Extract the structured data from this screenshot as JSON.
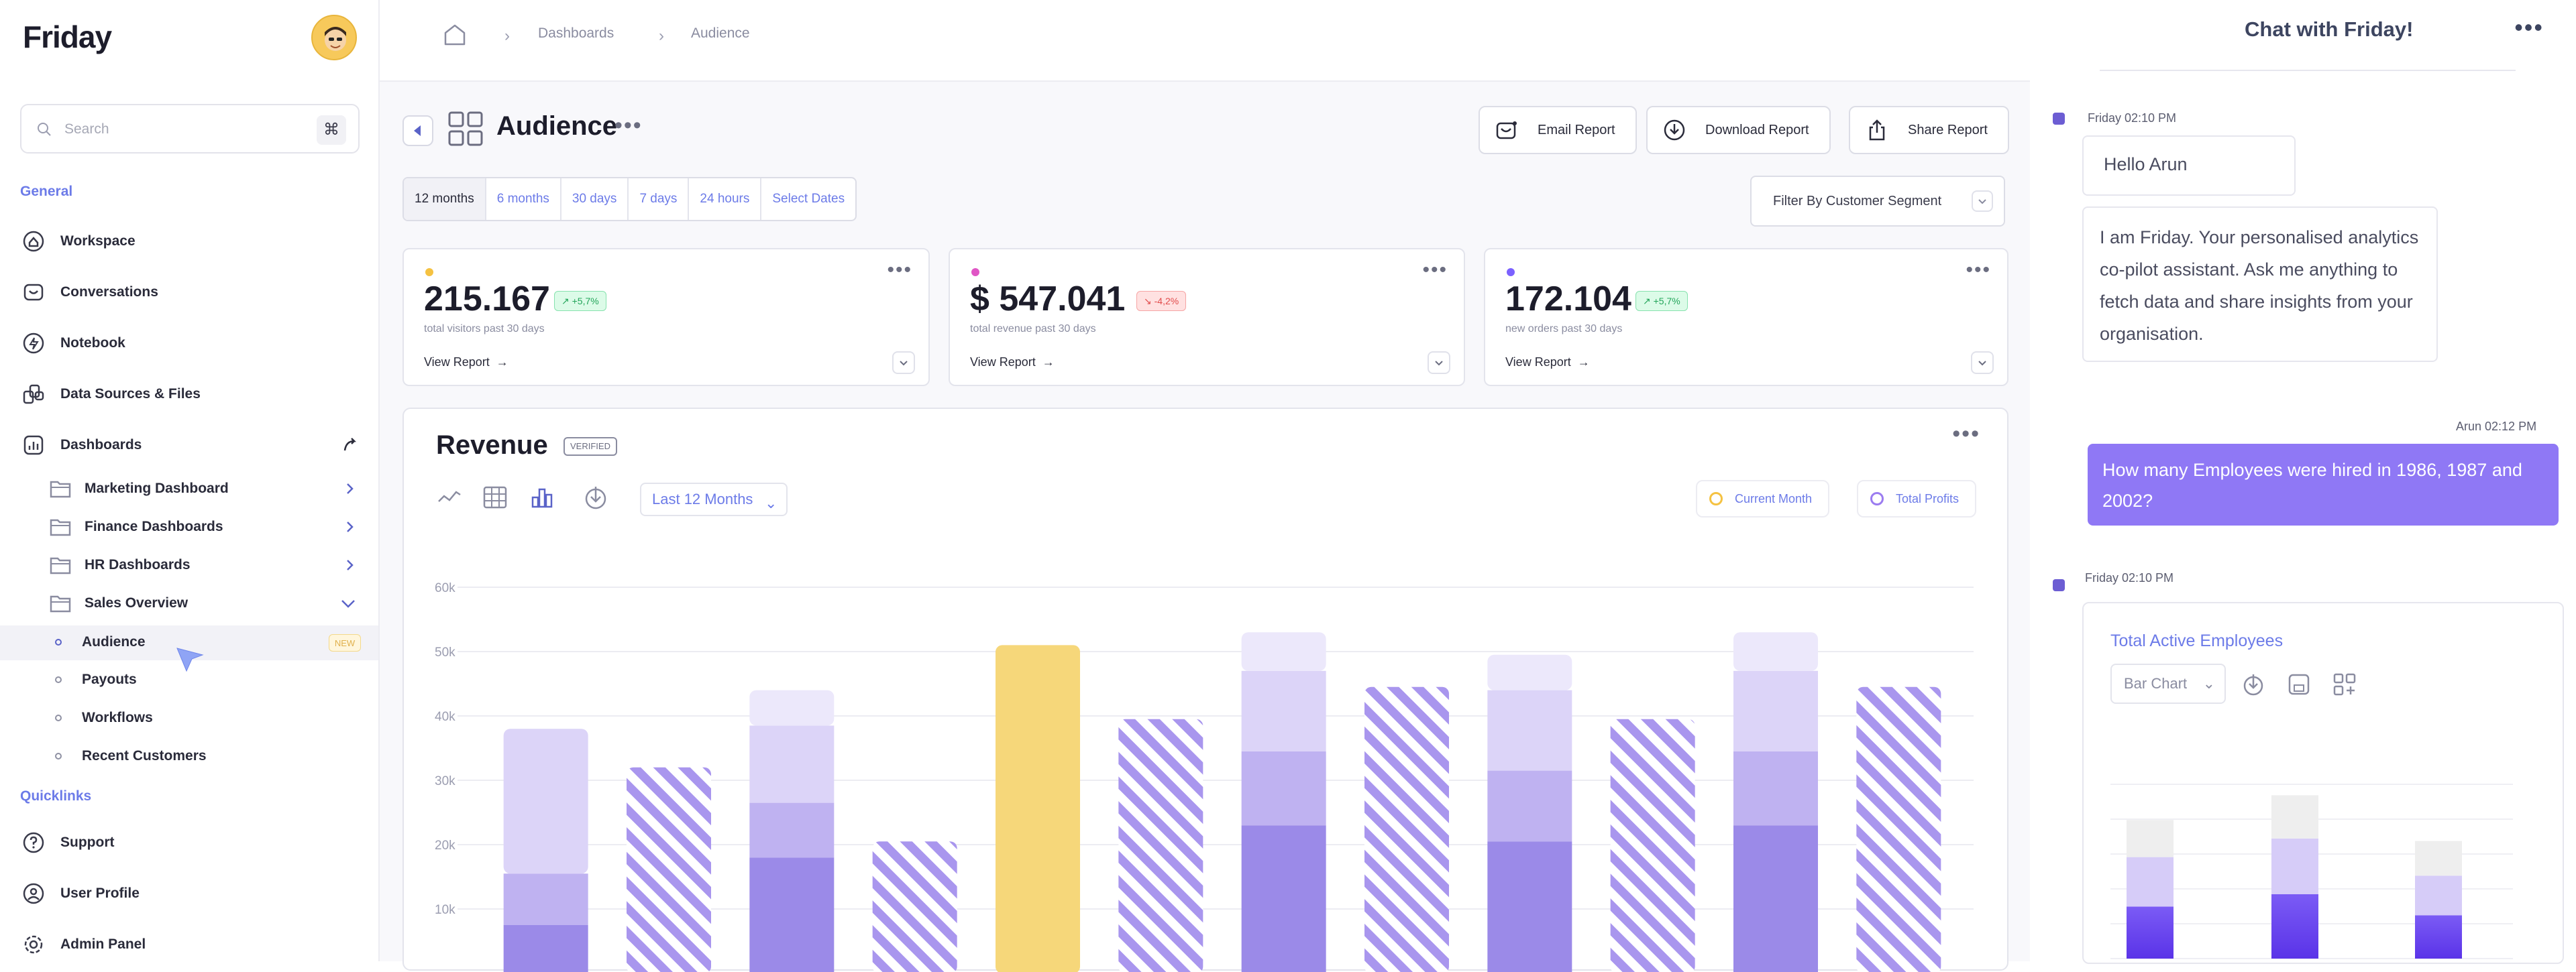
{
  "sidebar": {
    "logo": "Friday",
    "search": {
      "placeholder": "Search",
      "shortcut": "⌘"
    },
    "sections": {
      "general": "General",
      "quicklinks": "Quicklinks"
    },
    "nav": {
      "workspace": "Workspace",
      "conversations": "Conversations",
      "notebook": "Notebook",
      "data_sources": "Data Sources & Files",
      "dashboards": "Dashboards"
    },
    "dashboards": {
      "marketing": "Marketing Dashboard",
      "finance": "Finance Dashboards",
      "hr": "HR Dashboards",
      "sales": "Sales Overview"
    },
    "sales_items": {
      "audience": "Audience",
      "audience_badge": "NEW",
      "payouts": "Payouts",
      "workflows": "Workflows",
      "recent_customers": "Recent Customers"
    },
    "quicklinks": {
      "support": "Support",
      "user_profile": "User Profile",
      "admin_panel": "Admin Panel"
    }
  },
  "breadcrumb": {
    "dashboards": "Dashboards",
    "audience": "Audience"
  },
  "page": {
    "title": "Audience",
    "buttons": {
      "email": "Email Report",
      "download": "Download Report",
      "share": "Share Report"
    },
    "ranges": [
      "12 months",
      "6 months",
      "30 days",
      "7 days",
      "24 hours",
      "Select Dates"
    ],
    "selected_range": "12 months",
    "filter": "Filter By Customer Segment"
  },
  "kpis": [
    {
      "value": "215.167",
      "delta": "+5,7%",
      "trend": "up",
      "label": "total visitors past 30 days",
      "link": "View Report",
      "dot": "#f5c242"
    },
    {
      "value": "$ 547.041",
      "delta": "-4,2%",
      "trend": "down",
      "label": "total revenue past 30 days",
      "link": "View Report",
      "dot": "#e056c5"
    },
    {
      "value": "172.104",
      "delta": "+5,7%",
      "trend": "up",
      "label": "new orders past 30 days",
      "link": "View Report",
      "dot": "#7b61ff"
    }
  ],
  "revenue": {
    "title": "Revenue",
    "badge": "VERIFIED",
    "period": "Last 12 Months",
    "legend": [
      {
        "name": "Current Month",
        "color": "#f5c242"
      },
      {
        "name": "Total Profits",
        "color": "#9b7cf0"
      }
    ]
  },
  "chart_data": {
    "type": "bar",
    "ylim": [
      0,
      60000
    ],
    "yticks": [
      "60k",
      "50k",
      "40k",
      "30k",
      "20k",
      "10k"
    ],
    "bars": [
      {
        "style": "stacked",
        "segments": [
          7500,
          8000,
          22500
        ]
      },
      {
        "style": "hatched",
        "total": 32000
      },
      {
        "style": "stacked",
        "segments": [
          18000,
          8500,
          12000,
          5500
        ]
      },
      {
        "style": "hatched",
        "total": 20500
      },
      {
        "style": "current",
        "total": 51000
      },
      {
        "style": "hatched",
        "total": 39500
      },
      {
        "style": "stacked",
        "segments": [
          23000,
          11500,
          12500,
          6000
        ]
      },
      {
        "style": "hatched",
        "total": 44500
      },
      {
        "style": "stacked",
        "segments": [
          20500,
          11000,
          12500,
          5500
        ]
      },
      {
        "style": "hatched",
        "total": 39500
      },
      {
        "style": "stacked",
        "segments": [
          23000,
          11500,
          12500,
          6000
        ]
      },
      {
        "style": "hatched",
        "total": 44500
      }
    ]
  },
  "chat": {
    "title": "Chat with Friday!",
    "messages": [
      {
        "meta": "Friday 02:10 PM",
        "greeting": "Hello Arun",
        "text": "I am Friday. Your personalised analytics co-pilot assistant. Ask me anything to fetch data and share insights from your organisation."
      },
      {
        "meta": "Arun 02:12 PM",
        "text": "How many Employees were hired in 1986, 1987 and 2002?"
      },
      {
        "meta": "Friday 02:10 PM"
      }
    ],
    "chart_card": {
      "title": "Total Active Employees",
      "chart_type": "Bar Chart"
    }
  },
  "chat_chart_data": {
    "type": "bar",
    "bars": [
      {
        "segments": [
          0.42,
          0.4,
          0.3
        ]
      },
      {
        "segments": [
          0.52,
          0.45,
          0.35
        ]
      },
      {
        "segments": [
          0.35,
          0.32,
          0.28
        ]
      }
    ]
  }
}
